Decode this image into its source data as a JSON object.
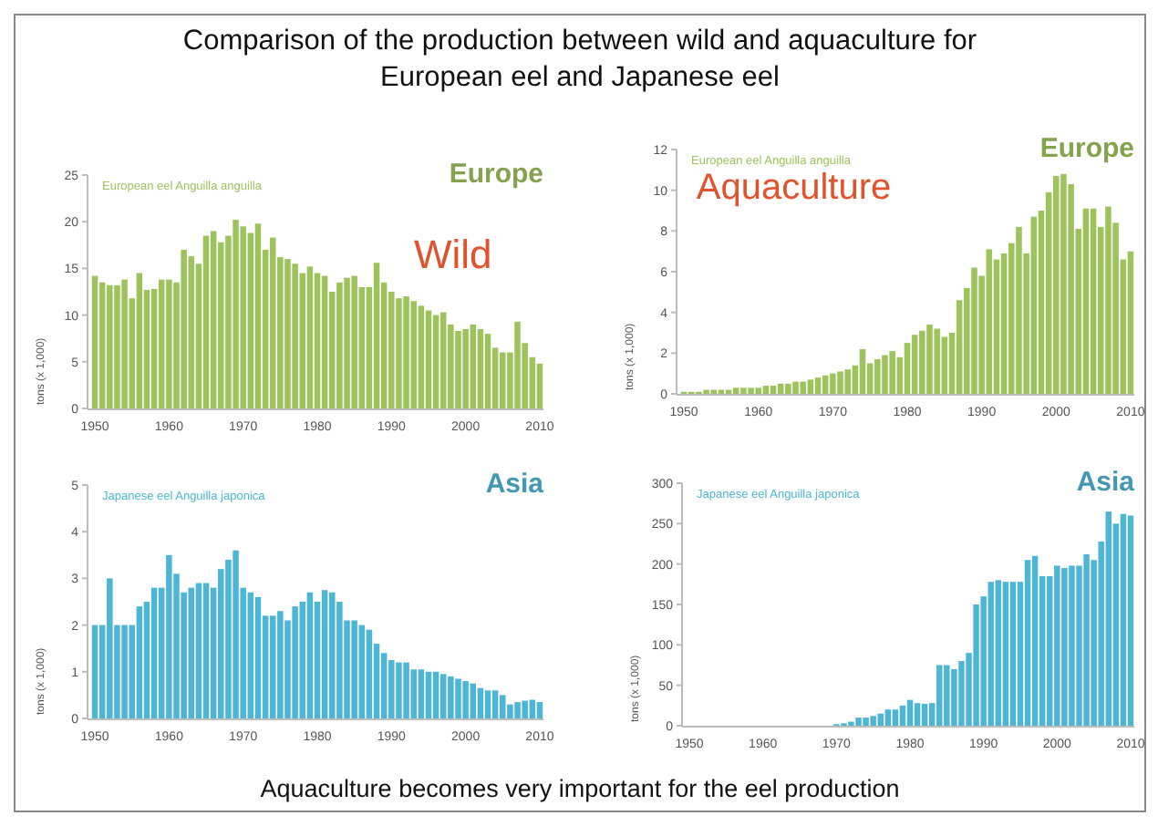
{
  "chart_data": [
    {
      "type": "bar",
      "title": "Comparison of the production between wild  and aquaculture for European eel and Japanese eel",
      "subtitle": "European eel  Anguilla anguilla",
      "ylabel": "tons (x 1,000)",
      "annotations": [
        "Wild"
      ],
      "x": [
        1950,
        1951,
        1952,
        1953,
        1954,
        1955,
        1956,
        1957,
        1958,
        1959,
        1960,
        1961,
        1962,
        1963,
        1964,
        1965,
        1966,
        1967,
        1968,
        1969,
        1970,
        1971,
        1972,
        1973,
        1974,
        1975,
        1976,
        1977,
        1978,
        1979,
        1980,
        1981,
        1982,
        1983,
        1984,
        1985,
        1986,
        1987,
        1988,
        1989,
        1990,
        1991,
        1992,
        1993,
        1994,
        1995,
        1996,
        1997,
        1998,
        1999,
        2000,
        2001,
        2002,
        2003,
        2004,
        2005,
        2006,
        2007,
        2008,
        2009,
        2010
      ],
      "xlim": [
        1949.5,
        2010.5
      ],
      "xticks": [
        1950,
        1960,
        1970,
        1980,
        1990,
        2000,
        2010
      ],
      "ylim": [
        0,
        25
      ],
      "yticks": [
        0,
        5,
        10,
        15,
        20,
        25
      ],
      "series": [
        {
          "name": "Europe",
          "color": "#9dc35c",
          "values": [
            14.2,
            13.5,
            13.2,
            13.2,
            13.8,
            11.8,
            14.5,
            12.7,
            12.8,
            13.8,
            13.8,
            13.5,
            17,
            16.3,
            15.5,
            18.5,
            19,
            17.8,
            18.5,
            20.2,
            19.5,
            18.8,
            19.8,
            17,
            18.3,
            16.2,
            16,
            15.5,
            14.5,
            15.2,
            14.5,
            14.2,
            12.5,
            13.5,
            14,
            14.2,
            13,
            13,
            15.6,
            13.5,
            12.5,
            11.8,
            12,
            11.5,
            11,
            10.5,
            10,
            10.3,
            9,
            8.3,
            8.5,
            9,
            8.5,
            8,
            6.5,
            6,
            6,
            9.3,
            7,
            5.5,
            4.8
          ]
        }
      ]
    },
    {
      "type": "bar",
      "subtitle": "European eel  Anguilla anguilla",
      "ylabel": "tons (x 1,000)",
      "annotations": [
        "Aquaculture"
      ],
      "x": [
        1950,
        1951,
        1952,
        1953,
        1954,
        1955,
        1956,
        1957,
        1958,
        1959,
        1960,
        1961,
        1962,
        1963,
        1964,
        1965,
        1966,
        1967,
        1968,
        1969,
        1970,
        1971,
        1972,
        1973,
        1974,
        1975,
        1976,
        1977,
        1978,
        1979,
        1980,
        1981,
        1982,
        1983,
        1984,
        1985,
        1986,
        1987,
        1988,
        1989,
        1990,
        1991,
        1992,
        1993,
        1994,
        1995,
        1996,
        1997,
        1998,
        1999,
        2000,
        2001,
        2002,
        2003,
        2004,
        2005,
        2006,
        2007,
        2008,
        2009,
        2010
      ],
      "xlim": [
        1949.5,
        2010.5
      ],
      "xticks": [
        1950,
        1960,
        1970,
        1980,
        1990,
        2000,
        2010
      ],
      "ylim": [
        0,
        12
      ],
      "yticks": [
        0,
        2,
        4,
        6,
        8,
        10,
        12
      ],
      "series": [
        {
          "name": "Europe",
          "color": "#9dc35c",
          "values": [
            0.1,
            0.1,
            0.1,
            0.2,
            0.2,
            0.2,
            0.2,
            0.3,
            0.3,
            0.3,
            0.3,
            0.4,
            0.4,
            0.5,
            0.5,
            0.6,
            0.6,
            0.7,
            0.8,
            0.9,
            1.0,
            1.1,
            1.2,
            1.4,
            2.2,
            1.5,
            1.7,
            1.9,
            2.1,
            1.8,
            2.5,
            2.9,
            3.1,
            3.4,
            3.2,
            2.8,
            3,
            4.6,
            5.2,
            6.2,
            5.8,
            7.1,
            6.6,
            6.9,
            7.4,
            8.2,
            6.9,
            8.7,
            9,
            9.9,
            10.7,
            10.8,
            10.3,
            8.1,
            9.1,
            9.1,
            8.2,
            9.2,
            8.4,
            6.6,
            7
          ]
        }
      ]
    },
    {
      "type": "bar",
      "subtitle": "Japanese eel  Anguilla japonica",
      "ylabel": "tons (x 1,000)",
      "x": [
        1950,
        1951,
        1952,
        1953,
        1954,
        1955,
        1956,
        1957,
        1958,
        1959,
        1960,
        1961,
        1962,
        1963,
        1964,
        1965,
        1966,
        1967,
        1968,
        1969,
        1970,
        1971,
        1972,
        1973,
        1974,
        1975,
        1976,
        1977,
        1978,
        1979,
        1980,
        1981,
        1982,
        1983,
        1984,
        1985,
        1986,
        1987,
        1988,
        1989,
        1990,
        1991,
        1992,
        1993,
        1994,
        1995,
        1996,
        1997,
        1998,
        1999,
        2000,
        2001,
        2002,
        2003,
        2004,
        2005,
        2006,
        2007,
        2008,
        2009,
        2010
      ],
      "xlim": [
        1949.5,
        2010.5
      ],
      "xticks": [
        1950,
        1960,
        1970,
        1980,
        1990,
        2000,
        2010
      ],
      "ylim": [
        0,
        5
      ],
      "yticks": [
        0,
        1,
        2,
        3,
        4,
        5
      ],
      "series": [
        {
          "name": "Asia",
          "color": "#4db6d6",
          "values": [
            2,
            2,
            3,
            2,
            2,
            2,
            2.4,
            2.5,
            2.8,
            2.8,
            3.5,
            3.1,
            2.7,
            2.8,
            2.9,
            2.9,
            2.8,
            3.2,
            3.4,
            3.6,
            2.8,
            2.7,
            2.6,
            2.2,
            2.2,
            2.3,
            2.1,
            2.4,
            2.5,
            2.7,
            2.5,
            2.75,
            2.7,
            2.5,
            2.1,
            2.1,
            2.0,
            1.9,
            1.6,
            1.4,
            1.25,
            1.2,
            1.2,
            1.05,
            1.05,
            1.0,
            1.0,
            0.95,
            0.9,
            0.85,
            0.8,
            0.75,
            0.65,
            0.6,
            0.6,
            0.5,
            0.3,
            0.35,
            0.38,
            0.4,
            0.35
          ]
        }
      ]
    },
    {
      "type": "bar",
      "subtitle": "Japanese eel  Anguilla japonica",
      "ylabel": "tons (x 1,000)",
      "annotations": [
        "Aquaculture becomes very important for the eel production"
      ],
      "x": [
        1950,
        1951,
        1952,
        1953,
        1954,
        1955,
        1956,
        1957,
        1958,
        1959,
        1960,
        1961,
        1962,
        1963,
        1964,
        1965,
        1966,
        1967,
        1968,
        1969,
        1970,
        1971,
        1972,
        1973,
        1974,
        1975,
        1976,
        1977,
        1978,
        1979,
        1980,
        1981,
        1982,
        1983,
        1984,
        1985,
        1986,
        1987,
        1988,
        1989,
        1990,
        1991,
        1992,
        1993,
        1994,
        1995,
        1996,
        1997,
        1998,
        1999,
        2000,
        2001,
        2002,
        2003,
        2004,
        2005,
        2006,
        2007,
        2008,
        2009,
        2010
      ],
      "xlim": [
        1949.5,
        2010.5
      ],
      "xticks": [
        1950,
        1960,
        1970,
        1980,
        1990,
        2000,
        2010
      ],
      "ylim": [
        0,
        300
      ],
      "yticks": [
        0,
        50,
        100,
        150,
        200,
        250,
        300
      ],
      "series": [
        {
          "name": "Asia",
          "color": "#4db6d6",
          "values": [
            0,
            0,
            0,
            0,
            0,
            0,
            0,
            0,
            0,
            0,
            0,
            0,
            0,
            0,
            0,
            0,
            0,
            0,
            0,
            0,
            2,
            3,
            5,
            10,
            10,
            12,
            15,
            20,
            20,
            25,
            32,
            28,
            27,
            28,
            75,
            75,
            70,
            80,
            90,
            150,
            160,
            178,
            180,
            178,
            178,
            178,
            205,
            210,
            185,
            185,
            198,
            195,
            198,
            198,
            212,
            205,
            228,
            265,
            250,
            262,
            260
          ]
        }
      ]
    }
  ]
}
